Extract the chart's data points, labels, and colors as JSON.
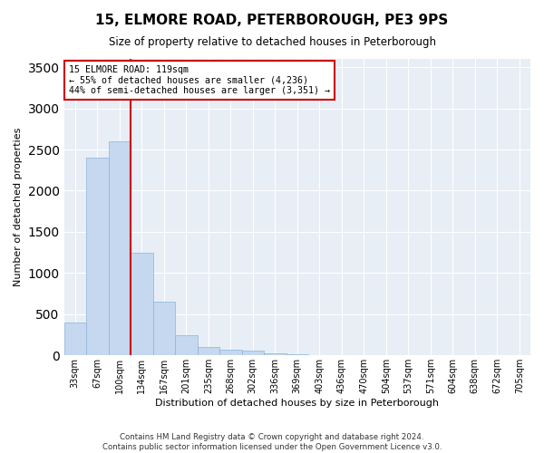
{
  "title": "15, ELMORE ROAD, PETERBOROUGH, PE3 9PS",
  "subtitle": "Size of property relative to detached houses in Peterborough",
  "xlabel": "Distribution of detached houses by size in Peterborough",
  "ylabel": "Number of detached properties",
  "categories": [
    "33sqm",
    "67sqm",
    "100sqm",
    "134sqm",
    "167sqm",
    "201sqm",
    "235sqm",
    "268sqm",
    "302sqm",
    "336sqm",
    "369sqm",
    "403sqm",
    "436sqm",
    "470sqm",
    "504sqm",
    "537sqm",
    "571sqm",
    "604sqm",
    "638sqm",
    "672sqm",
    "705sqm"
  ],
  "values": [
    400,
    2400,
    2600,
    1250,
    650,
    250,
    100,
    70,
    60,
    30,
    10,
    5,
    3,
    2,
    1,
    1,
    0,
    0,
    0,
    0,
    0
  ],
  "bar_color": "#c5d8f0",
  "bar_edge_color": "#8ab4d8",
  "property_line_x": 2.5,
  "property_line_color": "#cc0000",
  "annotation_text": "15 ELMORE ROAD: 119sqm\n← 55% of detached houses are smaller (4,236)\n44% of semi-detached houses are larger (3,351) →",
  "annotation_box_color": "#ffffff",
  "annotation_box_edge": "#cc0000",
  "ylim": [
    0,
    3600
  ],
  "yticks": [
    0,
    500,
    1000,
    1500,
    2000,
    2500,
    3000,
    3500
  ],
  "background_color": "#ffffff",
  "plot_bg_color": "#e8eef6",
  "grid_color": "#ffffff",
  "footer1": "Contains HM Land Registry data © Crown copyright and database right 2024.",
  "footer2": "Contains public sector information licensed under the Open Government Licence v3.0."
}
